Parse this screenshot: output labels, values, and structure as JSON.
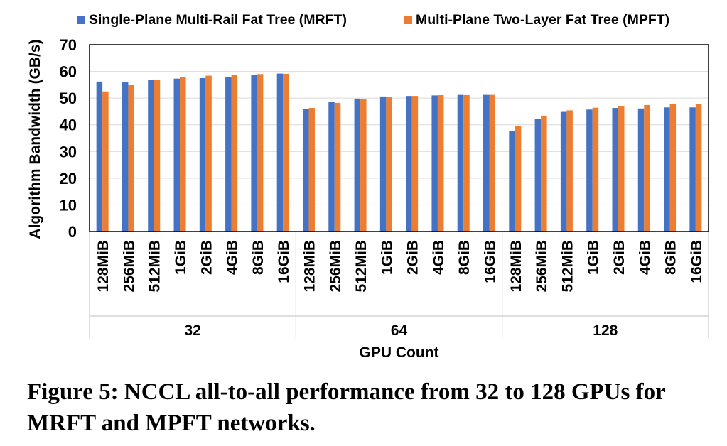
{
  "figure": {
    "caption": "Figure 5: NCCL all-to-all performance from 32 to 128 GPUs for MRFT and MPFT networks."
  },
  "colors": {
    "mrft": "#4472C4",
    "mpft": "#ED7D31",
    "grid": "#D9D9D9",
    "axis": "#000000"
  },
  "chart_data": {
    "type": "bar",
    "title": "",
    "ylabel": "Algorithm Bandwidth (GB/s)",
    "xlabel": "GPU Count",
    "ylim": [
      0,
      70
    ],
    "yticks": [
      0,
      10,
      20,
      30,
      40,
      50,
      60,
      70
    ],
    "grid": true,
    "legend_position": "top",
    "groups": [
      "32",
      "64",
      "128"
    ],
    "categories": [
      "128MiB",
      "256MiB",
      "512MiB",
      "1GiB",
      "2GiB",
      "4GiB",
      "8GiB",
      "16GiB"
    ],
    "series": [
      {
        "name": "Single-Plane Multi-Rail Fat Tree (MRFT)",
        "values": [
          [
            56.2,
            56.0,
            56.7,
            57.3,
            57.5,
            58.0,
            58.8,
            59.2
          ],
          [
            46.0,
            48.6,
            49.8,
            50.6,
            50.8,
            51.0,
            51.2,
            51.2
          ],
          [
            37.6,
            42.1,
            45.1,
            45.7,
            46.3,
            46.1,
            46.5,
            46.5
          ]
        ]
      },
      {
        "name": "Multi-Plane Two-Layer Fat Tree (MPFT)",
        "values": [
          [
            52.5,
            55.0,
            56.9,
            57.9,
            58.4,
            58.7,
            59.0,
            59.1
          ],
          [
            46.3,
            48.2,
            49.7,
            50.5,
            50.8,
            51.1,
            51.1,
            51.2
          ],
          [
            39.4,
            43.4,
            45.4,
            46.4,
            47.1,
            47.4,
            47.7,
            47.8
          ]
        ]
      }
    ]
  }
}
